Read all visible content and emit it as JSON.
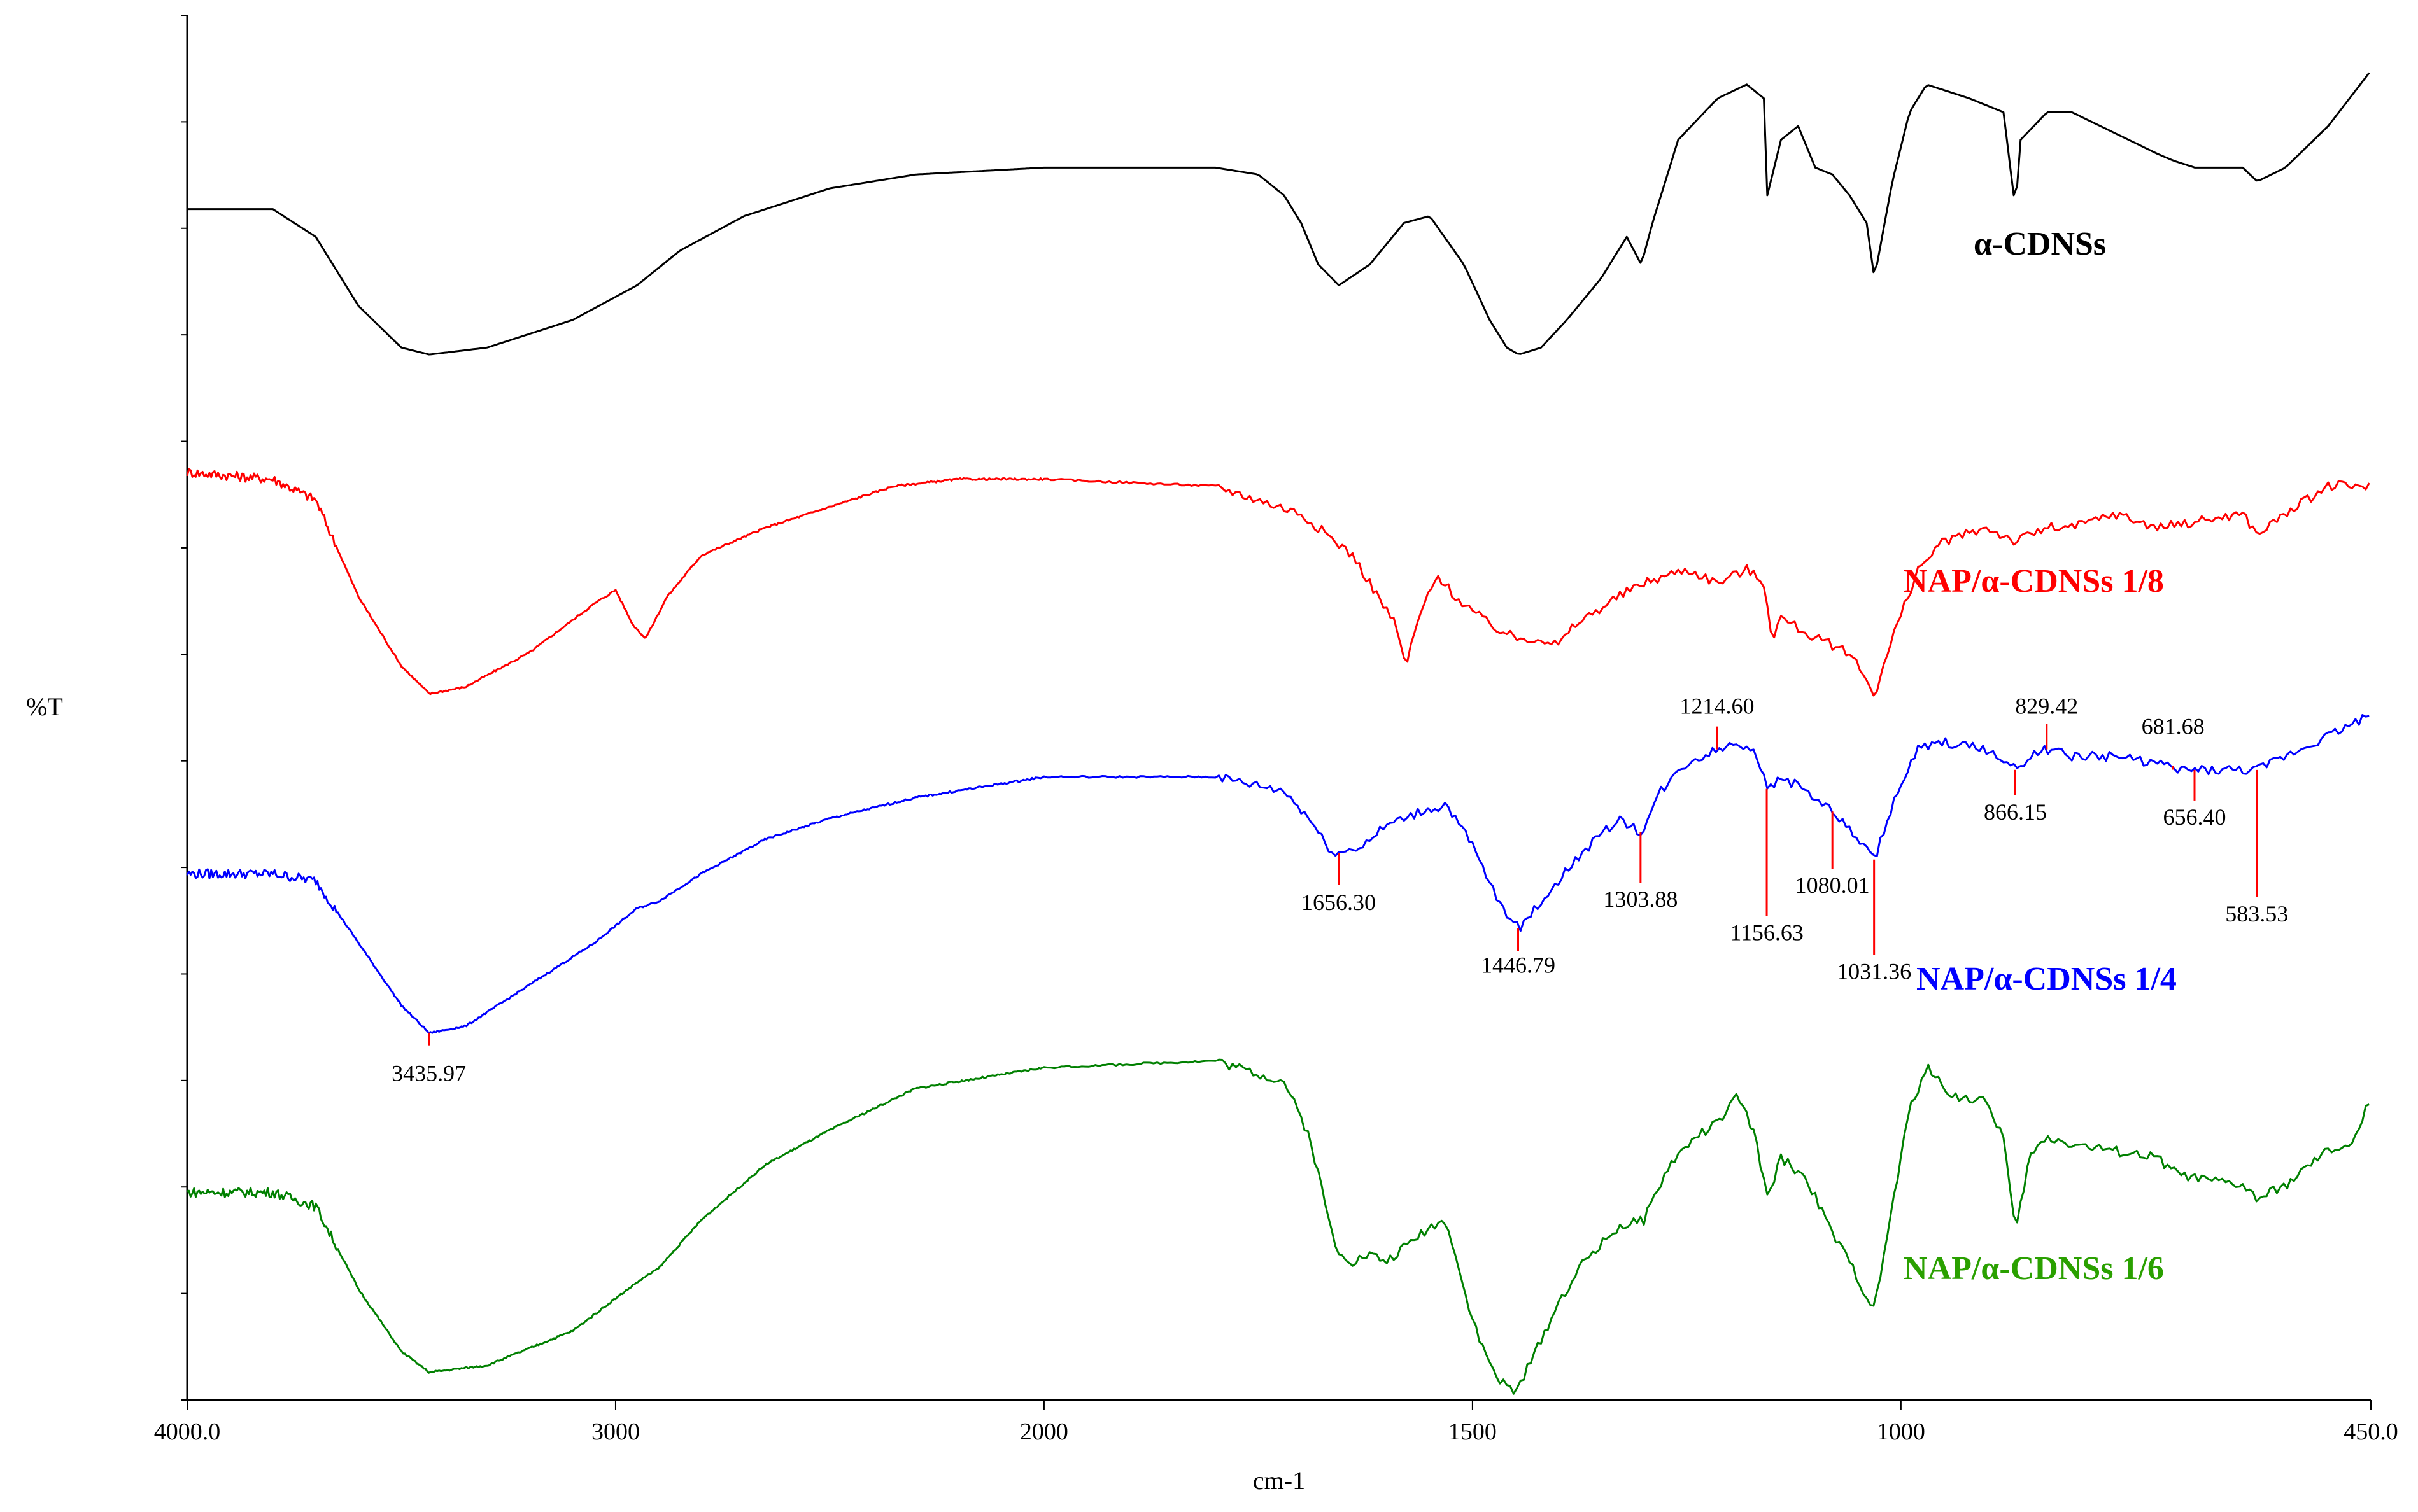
{
  "chart_data": {
    "type": "line",
    "title": "",
    "xlabel": "cm-1",
    "ylabel": "%T",
    "xlim": [
      4000.0,
      450.0
    ],
    "x_reversed": true,
    "x_tick_labels": [
      "4000.0",
      "3000",
      "2000",
      "1500",
      "1000",
      "450.0"
    ],
    "x_tick_values": [
      4000,
      3000,
      2000,
      1500,
      1000,
      450
    ],
    "y_scale": "relative, curves offset vertically (no numeric tick labels)",
    "y_range": [
      0,
      100
    ],
    "grid": false,
    "legend": "labels placed beside each curve on the right",
    "series": [
      {
        "name": "α-CDNSs",
        "color": "#000000",
        "points": [
          [
            4000,
            86
          ],
          [
            3800,
            86
          ],
          [
            3700,
            84
          ],
          [
            3600,
            79
          ],
          [
            3500,
            76
          ],
          [
            3435,
            75.5
          ],
          [
            3300,
            76
          ],
          [
            3100,
            78
          ],
          [
            2950,
            80.5
          ],
          [
            2850,
            83
          ],
          [
            2700,
            85.5
          ],
          [
            2500,
            87.5
          ],
          [
            2300,
            88.5
          ],
          [
            2000,
            89
          ],
          [
            1800,
            89
          ],
          [
            1750,
            88.5
          ],
          [
            1720,
            87
          ],
          [
            1700,
            85
          ],
          [
            1680,
            82
          ],
          [
            1656,
            80.5
          ],
          [
            1620,
            82
          ],
          [
            1580,
            85
          ],
          [
            1550,
            85.5
          ],
          [
            1510,
            82
          ],
          [
            1480,
            78
          ],
          [
            1460,
            76
          ],
          [
            1446,
            75.5
          ],
          [
            1420,
            76
          ],
          [
            1390,
            78
          ],
          [
            1350,
            81
          ],
          [
            1320,
            84
          ],
          [
            1303,
            82
          ],
          [
            1290,
            85
          ],
          [
            1260,
            91
          ],
          [
            1214,
            94
          ],
          [
            1180,
            95
          ],
          [
            1160,
            94
          ],
          [
            1156,
            87
          ],
          [
            1140,
            91
          ],
          [
            1120,
            92
          ],
          [
            1100,
            89
          ],
          [
            1080,
            88.5
          ],
          [
            1060,
            87
          ],
          [
            1040,
            85
          ],
          [
            1031,
            81
          ],
          [
            1010,
            88
          ],
          [
            990,
            93
          ],
          [
            970,
            95
          ],
          [
            920,
            94
          ],
          [
            880,
            93
          ],
          [
            866,
            86
          ],
          [
            860,
            91
          ],
          [
            829,
            93
          ],
          [
            800,
            93
          ],
          [
            750,
            91.5
          ],
          [
            700,
            90
          ],
          [
            681,
            89.5
          ],
          [
            656,
            89
          ],
          [
            600,
            89
          ],
          [
            583,
            88
          ],
          [
            550,
            89
          ],
          [
            500,
            92
          ],
          [
            450,
            96
          ]
        ]
      },
      {
        "name": "NAP/α-CDNSs 1/8",
        "color": "#ff0000",
        "points": [
          [
            4000,
            67
          ],
          [
            3800,
            66.5
          ],
          [
            3700,
            65
          ],
          [
            3600,
            58
          ],
          [
            3500,
            53
          ],
          [
            3435,
            51
          ],
          [
            3350,
            51.5
          ],
          [
            3200,
            54
          ],
          [
            3050,
            57.5
          ],
          [
            3000,
            58.5
          ],
          [
            2960,
            56
          ],
          [
            2930,
            55
          ],
          [
            2880,
            58
          ],
          [
            2800,
            61
          ],
          [
            2650,
            63
          ],
          [
            2500,
            64.5
          ],
          [
            2350,
            66
          ],
          [
            2200,
            66.5
          ],
          [
            2000,
            66.5
          ],
          [
            1800,
            66
          ],
          [
            1700,
            64
          ],
          [
            1640,
            61
          ],
          [
            1610,
            58
          ],
          [
            1590,
            56
          ],
          [
            1578,
            53
          ],
          [
            1560,
            57
          ],
          [
            1540,
            59.5
          ],
          [
            1520,
            58
          ],
          [
            1480,
            56
          ],
          [
            1450,
            55
          ],
          [
            1420,
            55
          ],
          [
            1400,
            54.5
          ],
          [
            1380,
            56
          ],
          [
            1330,
            58
          ],
          [
            1300,
            59
          ],
          [
            1250,
            60
          ],
          [
            1214,
            59
          ],
          [
            1180,
            60
          ],
          [
            1160,
            59
          ],
          [
            1150,
            55
          ],
          [
            1140,
            56.5
          ],
          [
            1100,
            55
          ],
          [
            1080,
            54.5
          ],
          [
            1060,
            54
          ],
          [
            1040,
            52
          ],
          [
            1030,
            51
          ],
          [
            1010,
            55
          ],
          [
            980,
            60
          ],
          [
            950,
            62
          ],
          [
            900,
            63
          ],
          [
            866,
            62
          ],
          [
            829,
            63
          ],
          [
            800,
            63
          ],
          [
            750,
            64
          ],
          [
            700,
            63
          ],
          [
            650,
            63.5
          ],
          [
            600,
            64
          ],
          [
            583,
            62.5
          ],
          [
            550,
            64
          ],
          [
            500,
            66
          ],
          [
            450,
            66
          ]
        ]
      },
      {
        "name": "NAP/α-CDNSs 1/4",
        "color": "#0000ff",
        "points": [
          [
            4000,
            38
          ],
          [
            3800,
            38
          ],
          [
            3700,
            37.5
          ],
          [
            3600,
            33
          ],
          [
            3500,
            28.5
          ],
          [
            3435,
            26.5
          ],
          [
            3350,
            27
          ],
          [
            3200,
            30
          ],
          [
            3050,
            33
          ],
          [
            2950,
            35.5
          ],
          [
            2900,
            36
          ],
          [
            2800,
            38
          ],
          [
            2650,
            40.5
          ],
          [
            2500,
            42
          ],
          [
            2300,
            43.5
          ],
          [
            2100,
            44.5
          ],
          [
            2000,
            45
          ],
          [
            1800,
            45
          ],
          [
            1720,
            44
          ],
          [
            1690,
            42
          ],
          [
            1670,
            40
          ],
          [
            1656,
            39.5
          ],
          [
            1630,
            40
          ],
          [
            1600,
            41.5
          ],
          [
            1560,
            42.5
          ],
          [
            1530,
            43
          ],
          [
            1500,
            40
          ],
          [
            1470,
            36
          ],
          [
            1446,
            34
          ],
          [
            1420,
            36
          ],
          [
            1380,
            39
          ],
          [
            1330,
            42
          ],
          [
            1303,
            41
          ],
          [
            1280,
            44
          ],
          [
            1250,
            46
          ],
          [
            1214,
            47
          ],
          [
            1190,
            47.5
          ],
          [
            1170,
            47
          ],
          [
            1156,
            44
          ],
          [
            1140,
            45
          ],
          [
            1110,
            44
          ],
          [
            1080,
            42.5
          ],
          [
            1050,
            40.5
          ],
          [
            1031,
            39
          ],
          [
            1010,
            43
          ],
          [
            980,
            47
          ],
          [
            950,
            47.5
          ],
          [
            900,
            47
          ],
          [
            866,
            45.5
          ],
          [
            850,
            46.5
          ],
          [
            829,
            47
          ],
          [
            800,
            46.5
          ],
          [
            750,
            46.5
          ],
          [
            700,
            46
          ],
          [
            681,
            45.5
          ],
          [
            656,
            45.5
          ],
          [
            600,
            45.5
          ],
          [
            583,
            45.5
          ],
          [
            550,
            46.5
          ],
          [
            500,
            48
          ],
          [
            450,
            49.5
          ]
        ]
      },
      {
        "name": "NAP/α-CDNSs 1/6",
        "color": "#008000",
        "points": [
          [
            4000,
            15
          ],
          [
            3800,
            15
          ],
          [
            3700,
            14
          ],
          [
            3600,
            8
          ],
          [
            3500,
            3.5
          ],
          [
            3435,
            2
          ],
          [
            3300,
            2.5
          ],
          [
            3100,
            5
          ],
          [
            2950,
            8.5
          ],
          [
            2900,
            9.5
          ],
          [
            2800,
            13
          ],
          [
            2650,
            17
          ],
          [
            2500,
            19.5
          ],
          [
            2400,
            21
          ],
          [
            2300,
            22.5
          ],
          [
            2000,
            24
          ],
          [
            1800,
            24.5
          ],
          [
            1720,
            23
          ],
          [
            1690,
            19
          ],
          [
            1660,
            11
          ],
          [
            1640,
            10
          ],
          [
            1620,
            10.5
          ],
          [
            1600,
            10
          ],
          [
            1580,
            11
          ],
          [
            1550,
            12.5
          ],
          [
            1530,
            13
          ],
          [
            1510,
            8
          ],
          [
            1490,
            4
          ],
          [
            1470,
            1.5
          ],
          [
            1450,
            0.5
          ],
          [
            1430,
            3
          ],
          [
            1400,
            7
          ],
          [
            1370,
            10
          ],
          [
            1330,
            12.5
          ],
          [
            1300,
            13
          ],
          [
            1270,
            17
          ],
          [
            1240,
            19
          ],
          [
            1214,
            20
          ],
          [
            1190,
            22
          ],
          [
            1170,
            19
          ],
          [
            1156,
            14.5
          ],
          [
            1140,
            17.5
          ],
          [
            1110,
            16
          ],
          [
            1080,
            12
          ],
          [
            1060,
            10
          ],
          [
            1040,
            7.5
          ],
          [
            1031,
            6.5
          ],
          [
            1010,
            14
          ],
          [
            990,
            21
          ],
          [
            970,
            24
          ],
          [
            940,
            22
          ],
          [
            900,
            21.5
          ],
          [
            880,
            19
          ],
          [
            866,
            12
          ],
          [
            850,
            17.5
          ],
          [
            829,
            19
          ],
          [
            800,
            18.5
          ],
          [
            750,
            18
          ],
          [
            700,
            17.5
          ],
          [
            681,
            16.5
          ],
          [
            656,
            16
          ],
          [
            600,
            15.5
          ],
          [
            583,
            14.5
          ],
          [
            550,
            15.5
          ],
          [
            500,
            18
          ],
          [
            470,
            18.5
          ],
          [
            450,
            22
          ]
        ]
      }
    ],
    "series_labels": [
      {
        "text": "α-CDNSs",
        "color": "#000000"
      },
      {
        "text": "NAP/α-CDNSs 1/8",
        "color": "#ff0000"
      },
      {
        "text": "NAP/α-CDNSs 1/4",
        "color": "#0000ff"
      },
      {
        "text": "NAP/α-CDNSs 1/6",
        "color": "#2aa000"
      }
    ],
    "peak_annotations": [
      {
        "x": 3435.97,
        "label": "3435.97"
      },
      {
        "x": 1656.3,
        "label": "1656.30"
      },
      {
        "x": 1446.79,
        "label": "1446.79"
      },
      {
        "x": 1303.88,
        "label": "1303.88"
      },
      {
        "x": 1214.6,
        "label": "1214.60"
      },
      {
        "x": 1156.63,
        "label": "1156.63"
      },
      {
        "x": 1080.01,
        "label": "1080.01"
      },
      {
        "x": 1031.36,
        "label": "1031.36"
      },
      {
        "x": 866.15,
        "label": "866.15"
      },
      {
        "x": 829.42,
        "label": "829.42"
      },
      {
        "x": 681.68,
        "label": "681.68"
      },
      {
        "x": 656.4,
        "label": "656.40"
      },
      {
        "x": 583.53,
        "label": "583.53"
      }
    ]
  }
}
